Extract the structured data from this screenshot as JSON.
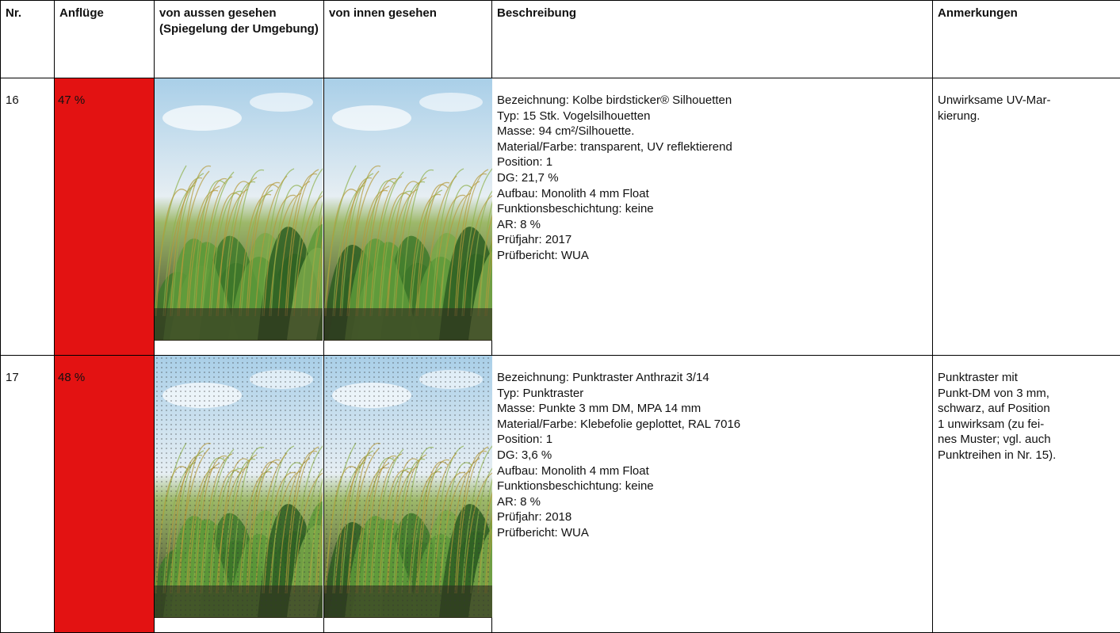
{
  "table": {
    "header": [
      "Nr.",
      "Anflüge",
      "von aussen gesehen (Spiegelung der Umgebung)",
      "von innen gesehen",
      "Beschreibung",
      "Anmerkungen"
    ],
    "rows": [
      {
        "nr": "16",
        "anfluege": "47 %",
        "beschreibung": [
          "Bezeichnung: Kolbe birdsticker® Silhouetten",
          "Typ: 15 Stk. Vogelsilhouetten",
          "Masse: 94 cm²/Silhouette.",
          "Material/Farbe: transparent, UV reflektierend",
          "Position: 1",
          "DG: 21,7 %",
          "Aufbau: Monolith 4 mm Float",
          "Funktionsbeschichtung: keine",
          "AR: 8 %",
          "Prüfjahr: 2017",
          "Prüfbericht: WUA"
        ],
        "anmerkungen": [
          "Unwirksame UV-Mar-",
          "kierung."
        ]
      },
      {
        "nr": "17",
        "anfluege": "48 %",
        "beschreibung": [
          "Bezeichnung: Punktraster Anthrazit 3/14",
          "Typ: Punktraster",
          "Masse: Punkte 3 mm DM, MPA 14 mm",
          "Material/Farbe: Klebefolie geplottet, RAL 7016",
          "Position: 1",
          "DG: 3,6 %",
          "Aufbau: Monolith 4 mm Float",
          "Funktionsbeschichtung: keine",
          "AR: 8 %",
          "Prüfjahr: 2018",
          "Prüfbericht: WUA"
        ],
        "anmerkungen": [
          "Punktraster mit",
          "Punkt-DM von 3 mm,",
          "schwarz, auf Position",
          "1 unwirksam (zu fei-",
          "nes Muster; vgl. auch",
          "Punktreihen in Nr. 15)."
        ]
      }
    ]
  }
}
